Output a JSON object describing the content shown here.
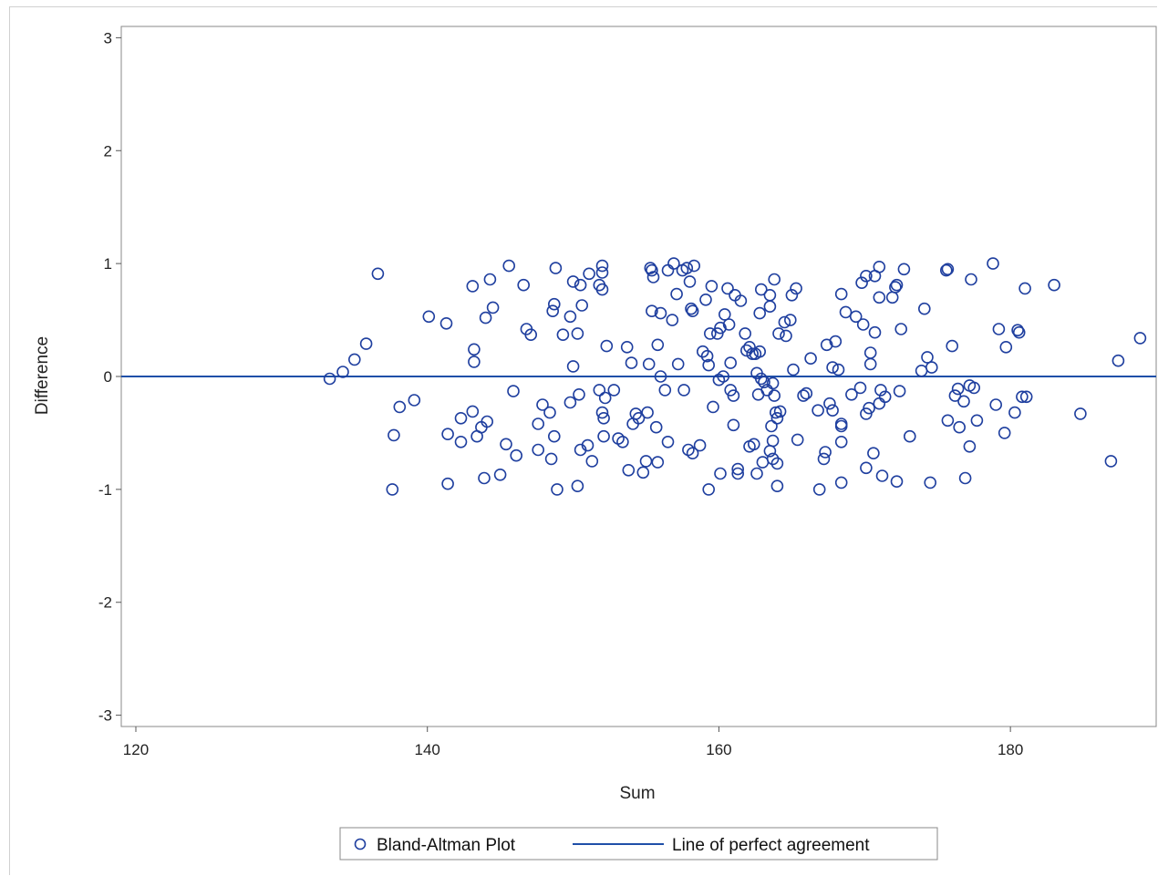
{
  "chart_data": {
    "type": "scatter",
    "xlabel": "Sum",
    "ylabel": "Difference",
    "xlim": [
      119,
      190
    ],
    "ylim": [
      -3.1,
      3.1
    ],
    "xticks": [
      120,
      140,
      160,
      180
    ],
    "yticks": [
      -3,
      -2,
      -1,
      0,
      1,
      2,
      3
    ],
    "grid": false,
    "legend_position": "bottom",
    "series": [
      {
        "name": "Bland-Altman Plot",
        "marker": "open-circle",
        "color": "#1f3f9f",
        "points": [
          [
            133.3,
            -0.02
          ],
          [
            134.2,
            0.04
          ],
          [
            135.0,
            0.15
          ],
          [
            135.8,
            0.29
          ],
          [
            136.6,
            0.91
          ],
          [
            137.6,
            -1.0
          ],
          [
            137.7,
            -0.52
          ],
          [
            138.1,
            -0.27
          ],
          [
            139.1,
            -0.21
          ],
          [
            140.1,
            0.53
          ],
          [
            141.3,
            0.47
          ],
          [
            141.4,
            -0.51
          ],
          [
            141.4,
            -0.95
          ],
          [
            142.3,
            -0.37
          ],
          [
            142.3,
            -0.58
          ],
          [
            143.1,
            0.8
          ],
          [
            143.1,
            -0.31
          ],
          [
            143.2,
            0.24
          ],
          [
            143.2,
            0.13
          ],
          [
            143.4,
            -0.53
          ],
          [
            143.7,
            -0.45
          ],
          [
            143.9,
            -0.9
          ],
          [
            144.0,
            0.52
          ],
          [
            144.1,
            -0.4
          ],
          [
            144.3,
            0.86
          ],
          [
            144.5,
            0.61
          ],
          [
            145.0,
            -0.87
          ],
          [
            145.4,
            -0.6
          ],
          [
            145.6,
            0.98
          ],
          [
            145.9,
            -0.13
          ],
          [
            146.1,
            -0.7
          ],
          [
            146.6,
            0.81
          ],
          [
            146.8,
            0.42
          ],
          [
            147.1,
            0.37
          ],
          [
            147.6,
            -0.42
          ],
          [
            147.6,
            -0.65
          ],
          [
            147.9,
            -0.25
          ],
          [
            148.4,
            -0.32
          ],
          [
            148.5,
            -0.73
          ],
          [
            148.6,
            0.58
          ],
          [
            148.7,
            0.64
          ],
          [
            148.7,
            -0.53
          ],
          [
            148.8,
            0.96
          ],
          [
            148.9,
            -1.0
          ],
          [
            149.3,
            0.37
          ],
          [
            149.8,
            0.53
          ],
          [
            149.8,
            -0.23
          ],
          [
            150.0,
            0.09
          ],
          [
            150.0,
            0.84
          ],
          [
            150.3,
            -0.97
          ],
          [
            150.3,
            0.38
          ],
          [
            150.4,
            -0.16
          ],
          [
            150.5,
            -0.65
          ],
          [
            150.5,
            0.81
          ],
          [
            150.6,
            0.63
          ],
          [
            151.0,
            -0.61
          ],
          [
            151.1,
            0.91
          ],
          [
            151.3,
            -0.75
          ],
          [
            151.8,
            0.81
          ],
          [
            151.8,
            -0.12
          ],
          [
            152.0,
            0.77
          ],
          [
            152.0,
            0.92
          ],
          [
            152.0,
            0.98
          ],
          [
            152.0,
            -0.32
          ],
          [
            152.1,
            -0.53
          ],
          [
            152.1,
            -0.37
          ],
          [
            152.2,
            -0.19
          ],
          [
            152.3,
            0.27
          ],
          [
            152.8,
            -0.12
          ],
          [
            153.1,
            -0.55
          ],
          [
            153.4,
            -0.58
          ],
          [
            153.7,
            0.26
          ],
          [
            153.8,
            -0.83
          ],
          [
            154.0,
            0.12
          ],
          [
            154.1,
            -0.42
          ],
          [
            154.3,
            -0.33
          ],
          [
            154.5,
            -0.37
          ],
          [
            154.8,
            -0.85
          ],
          [
            155.0,
            -0.75
          ],
          [
            155.1,
            -0.32
          ],
          [
            155.2,
            0.11
          ],
          [
            155.3,
            0.96
          ],
          [
            155.4,
            0.94
          ],
          [
            155.4,
            0.58
          ],
          [
            155.5,
            0.88
          ],
          [
            155.7,
            -0.45
          ],
          [
            155.8,
            0.28
          ],
          [
            155.8,
            -0.76
          ],
          [
            156.0,
            0.0
          ],
          [
            156.0,
            0.56
          ],
          [
            156.3,
            -0.12
          ],
          [
            156.5,
            0.94
          ],
          [
            156.5,
            -0.58
          ],
          [
            156.8,
            0.5
          ],
          [
            156.9,
            1.0
          ],
          [
            157.1,
            0.73
          ],
          [
            157.2,
            0.11
          ],
          [
            157.5,
            0.94
          ],
          [
            157.6,
            -0.12
          ],
          [
            157.8,
            0.96
          ],
          [
            157.9,
            -0.65
          ],
          [
            158.0,
            0.84
          ],
          [
            158.1,
            0.6
          ],
          [
            158.2,
            -0.68
          ],
          [
            158.2,
            0.58
          ],
          [
            158.3,
            0.98
          ],
          [
            158.7,
            -0.61
          ],
          [
            158.9,
            0.22
          ],
          [
            159.1,
            0.68
          ],
          [
            159.2,
            0.18
          ],
          [
            159.3,
            0.1
          ],
          [
            159.3,
            -1.0
          ],
          [
            159.4,
            0.38
          ],
          [
            159.5,
            0.8
          ],
          [
            159.6,
            -0.27
          ],
          [
            159.9,
            0.38
          ],
          [
            160.0,
            -0.03
          ],
          [
            160.1,
            0.43
          ],
          [
            160.1,
            -0.86
          ],
          [
            160.3,
            0.0
          ],
          [
            160.4,
            0.55
          ],
          [
            160.6,
            0.78
          ],
          [
            160.7,
            0.46
          ],
          [
            160.8,
            0.12
          ],
          [
            160.8,
            -0.12
          ],
          [
            161.0,
            -0.43
          ],
          [
            161.0,
            -0.17
          ],
          [
            161.1,
            0.72
          ],
          [
            161.3,
            -0.86
          ],
          [
            161.3,
            -0.82
          ],
          [
            161.5,
            0.67
          ],
          [
            161.8,
            0.38
          ],
          [
            161.9,
            0.23
          ],
          [
            162.1,
            -0.62
          ],
          [
            162.1,
            0.26
          ],
          [
            162.3,
            0.2
          ],
          [
            162.4,
            -0.6
          ],
          [
            162.5,
            0.2
          ],
          [
            162.6,
            -0.86
          ],
          [
            162.6,
            0.03
          ],
          [
            162.7,
            -0.16
          ],
          [
            162.8,
            0.56
          ],
          [
            162.8,
            0.22
          ],
          [
            162.9,
            -0.02
          ],
          [
            162.9,
            0.77
          ],
          [
            163.0,
            -0.76
          ],
          [
            163.1,
            -0.05
          ],
          [
            163.3,
            -0.12
          ],
          [
            163.5,
            0.72
          ],
          [
            163.5,
            0.62
          ],
          [
            163.5,
            -0.66
          ],
          [
            163.6,
            -0.44
          ],
          [
            163.7,
            -0.57
          ],
          [
            163.7,
            -0.06
          ],
          [
            163.7,
            -0.73
          ],
          [
            163.8,
            -0.17
          ],
          [
            163.8,
            0.86
          ],
          [
            163.9,
            -0.32
          ],
          [
            164.0,
            -0.37
          ],
          [
            164.0,
            -0.77
          ],
          [
            164.0,
            -0.97
          ],
          [
            164.1,
            0.38
          ],
          [
            164.2,
            -0.31
          ],
          [
            164.5,
            0.48
          ],
          [
            164.6,
            0.36
          ],
          [
            164.9,
            0.5
          ],
          [
            165.0,
            0.72
          ],
          [
            165.1,
            0.06
          ],
          [
            165.3,
            0.78
          ],
          [
            165.4,
            -0.56
          ],
          [
            165.8,
            -0.17
          ],
          [
            166.0,
            -0.15
          ],
          [
            166.3,
            0.16
          ],
          [
            166.8,
            -0.3
          ],
          [
            166.9,
            -1.0
          ],
          [
            167.2,
            -0.73
          ],
          [
            167.3,
            -0.67
          ],
          [
            167.4,
            0.28
          ],
          [
            167.6,
            -0.24
          ],
          [
            167.8,
            0.08
          ],
          [
            167.8,
            -0.3
          ],
          [
            168.0,
            0.31
          ],
          [
            168.2,
            0.06
          ],
          [
            168.4,
            -0.42
          ],
          [
            168.4,
            -0.44
          ],
          [
            168.4,
            -0.58
          ],
          [
            168.4,
            0.73
          ],
          [
            168.4,
            -0.94
          ],
          [
            168.7,
            0.57
          ],
          [
            169.1,
            -0.16
          ],
          [
            169.4,
            0.53
          ],
          [
            169.7,
            -0.1
          ],
          [
            169.8,
            0.83
          ],
          [
            169.9,
            0.46
          ],
          [
            170.1,
            0.89
          ],
          [
            170.1,
            -0.81
          ],
          [
            170.1,
            -0.33
          ],
          [
            170.3,
            -0.28
          ],
          [
            170.4,
            0.21
          ],
          [
            170.4,
            0.11
          ],
          [
            170.6,
            -0.68
          ],
          [
            170.7,
            0.89
          ],
          [
            170.7,
            0.39
          ],
          [
            171.0,
            0.97
          ],
          [
            171.0,
            -0.24
          ],
          [
            171.0,
            0.7
          ],
          [
            171.1,
            -0.12
          ],
          [
            171.2,
            -0.88
          ],
          [
            171.4,
            -0.18
          ],
          [
            171.9,
            0.7
          ],
          [
            172.1,
            0.79
          ],
          [
            172.2,
            0.81
          ],
          [
            172.2,
            -0.93
          ],
          [
            172.4,
            -0.13
          ],
          [
            172.5,
            0.42
          ],
          [
            172.7,
            0.95
          ],
          [
            173.1,
            -0.53
          ],
          [
            173.9,
            0.05
          ],
          [
            174.1,
            0.6
          ],
          [
            174.3,
            0.17
          ],
          [
            174.5,
            -0.94
          ],
          [
            174.6,
            0.08
          ],
          [
            175.6,
            0.94
          ],
          [
            175.7,
            0.95
          ],
          [
            175.7,
            -0.39
          ],
          [
            176.0,
            0.27
          ],
          [
            176.2,
            -0.17
          ],
          [
            176.4,
            -0.11
          ],
          [
            176.5,
            -0.45
          ],
          [
            176.8,
            -0.22
          ],
          [
            176.9,
            -0.9
          ],
          [
            177.2,
            -0.62
          ],
          [
            177.2,
            -0.08
          ],
          [
            177.3,
            0.86
          ],
          [
            177.5,
            -0.1
          ],
          [
            177.7,
            -0.39
          ],
          [
            178.8,
            1.0
          ],
          [
            179.0,
            -0.25
          ],
          [
            179.2,
            0.42
          ],
          [
            179.6,
            -0.5
          ],
          [
            179.7,
            0.26
          ],
          [
            180.3,
            -0.32
          ],
          [
            180.5,
            0.41
          ],
          [
            180.6,
            0.39
          ],
          [
            180.8,
            -0.18
          ],
          [
            181.0,
            0.78
          ],
          [
            181.1,
            -0.18
          ],
          [
            183.0,
            0.81
          ],
          [
            184.8,
            -0.33
          ],
          [
            186.9,
            -0.75
          ],
          [
            187.4,
            0.14
          ],
          [
            188.9,
            0.34
          ]
        ]
      },
      {
        "name": "Line of perfect agreement",
        "type": "refline",
        "y": 0,
        "color": "#1f4fa8"
      }
    ]
  }
}
